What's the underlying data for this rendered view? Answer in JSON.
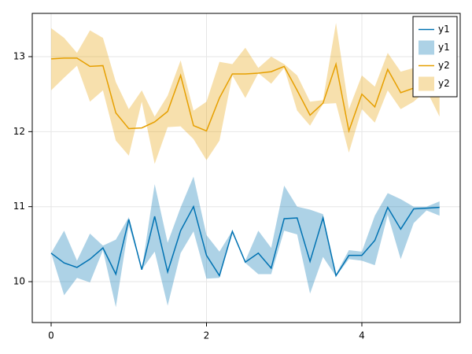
{
  "chart_data": {
    "type": "line_band",
    "x": [
      0,
      0.167,
      0.333,
      0.5,
      0.667,
      0.833,
      1,
      1.167,
      1.333,
      1.5,
      1.667,
      1.833,
      2,
      2.167,
      2.333,
      2.5,
      2.667,
      2.833,
      3,
      3.167,
      3.333,
      3.5,
      3.667,
      3.833,
      4,
      4.167,
      4.333,
      4.5,
      4.667,
      4.833,
      5
    ],
    "series": [
      {
        "name": "y1",
        "type": "line",
        "color": "#0072B2",
        "values": [
          10.38,
          10.25,
          10.19,
          10.3,
          10.45,
          10.1,
          10.83,
          10.16,
          10.87,
          10.13,
          10.68,
          11.0,
          10.35,
          10.08,
          10.67,
          10.26,
          10.38,
          10.18,
          10.84,
          10.85,
          10.27,
          10.85,
          10.08,
          10.35,
          10.35,
          10.55,
          10.99,
          10.7,
          10.97,
          10.98,
          10.99
        ]
      },
      {
        "name": "y1",
        "type": "band",
        "color": "#0072B2",
        "lower": [
          10.38,
          9.82,
          10.05,
          9.99,
          10.42,
          9.66,
          10.75,
          10.16,
          10.4,
          9.68,
          10.38,
          10.67,
          10.04,
          10.05,
          10.66,
          10.25,
          10.1,
          10.1,
          10.68,
          10.63,
          9.84,
          10.33,
          10.07,
          10.3,
          10.28,
          10.22,
          10.89,
          10.3,
          10.78,
          10.95,
          10.88
        ],
        "upper": [
          10.38,
          10.68,
          10.28,
          10.64,
          10.48,
          10.56,
          10.86,
          10.16,
          11.3,
          10.52,
          10.99,
          11.4,
          10.62,
          10.4,
          10.68,
          10.28,
          10.68,
          10.45,
          11.28,
          11.0,
          10.96,
          10.9,
          10.1,
          10.42,
          10.4,
          10.88,
          11.18,
          11.1,
          11.0,
          11.0,
          11.07
        ]
      },
      {
        "name": "y2",
        "type": "line",
        "color": "#E69F00",
        "values": [
          12.97,
          12.98,
          12.98,
          12.87,
          12.88,
          12.25,
          12.04,
          12.05,
          12.13,
          12.27,
          12.75,
          12.08,
          12.01,
          12.45,
          12.77,
          12.77,
          12.78,
          12.8,
          12.87,
          12.55,
          12.22,
          12.38,
          12.9,
          12.01,
          12.5,
          12.33,
          12.83,
          12.52,
          12.58,
          12.55,
          12.5
        ]
      },
      {
        "name": "y2",
        "type": "band",
        "color": "#E69F00",
        "lower": [
          12.55,
          12.72,
          12.88,
          12.4,
          12.55,
          11.88,
          11.68,
          12.4,
          11.57,
          12.06,
          12.07,
          11.9,
          11.62,
          11.88,
          12.75,
          12.45,
          12.78,
          12.64,
          12.85,
          12.28,
          12.08,
          12.37,
          12.38,
          11.72,
          12.3,
          12.12,
          12.55,
          12.3,
          12.4,
          12.55,
          12.2
        ],
        "upper": [
          13.38,
          13.25,
          13.05,
          13.35,
          13.25,
          12.66,
          12.3,
          12.55,
          12.2,
          12.48,
          12.95,
          12.28,
          12.4,
          12.93,
          12.9,
          13.12,
          12.85,
          13.0,
          12.9,
          12.75,
          12.4,
          12.42,
          13.45,
          12.3,
          12.75,
          12.6,
          13.05,
          12.8,
          12.85,
          12.6,
          12.65
        ]
      }
    ],
    "xlim": [
      -0.243,
      5.266
    ],
    "ylim": [
      9.455,
      13.577
    ],
    "xticks": [
      0,
      2,
      4
    ],
    "yticks": [
      10,
      11,
      12,
      13
    ],
    "grid": true,
    "legend": "top-right"
  }
}
